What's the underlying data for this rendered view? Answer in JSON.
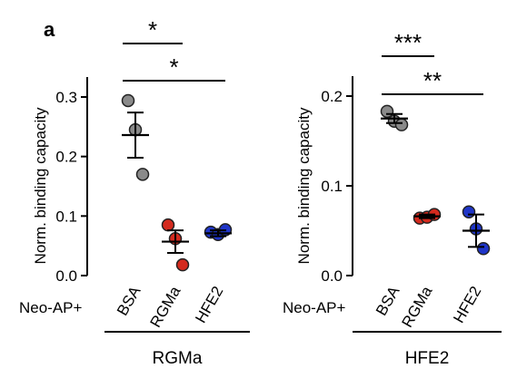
{
  "panel_label": "a",
  "row_prefix": "Neo-AP+",
  "colors": {
    "BSA": "#8a8a8a",
    "RGMa": "#d42a1e",
    "HFE2": "#1f35c8"
  },
  "chart_data": [
    {
      "type": "scatter",
      "ylabel": "Norm. binding capacity",
      "ylim": [
        0,
        0.3
      ],
      "yticks": [
        "0.0",
        "0.1",
        "0.2",
        "0.3"
      ],
      "categories": [
        "BSA",
        "RGMa",
        "HFE2"
      ],
      "points": [
        [
          0.294,
          0.245,
          0.17
        ],
        [
          0.085,
          0.062,
          0.018
        ],
        [
          0.073,
          0.069,
          0.077
        ]
      ],
      "mean": [
        0.236,
        0.057,
        0.071
      ],
      "sem": [
        0.038,
        0.019,
        0.005
      ],
      "significance": [
        {
          "from": "BSA",
          "to": "RGMa",
          "label": "*"
        },
        {
          "from": "BSA",
          "to": "HFE2",
          "label": "*"
        }
      ],
      "group_label": "RGMa"
    },
    {
      "type": "scatter",
      "ylabel": "Norm. binding capacity",
      "ylim": [
        0,
        0.2
      ],
      "yticks": [
        "0.0",
        "0.1",
        "0.2"
      ],
      "categories": [
        "BSA",
        "RGMa",
        "HFE2"
      ],
      "points": [
        [
          0.183,
          0.172,
          0.168
        ],
        [
          0.064,
          0.065,
          0.068
        ],
        [
          0.071,
          0.052,
          0.03
        ]
      ],
      "mean": [
        0.175,
        0.066,
        0.05
      ],
      "sem": [
        0.005,
        0.002,
        0.018
      ],
      "significance": [
        {
          "from": "BSA",
          "to": "RGMa",
          "label": "***"
        },
        {
          "from": "BSA",
          "to": "HFE2",
          "label": "**"
        }
      ],
      "group_label": "HFE2"
    }
  ]
}
